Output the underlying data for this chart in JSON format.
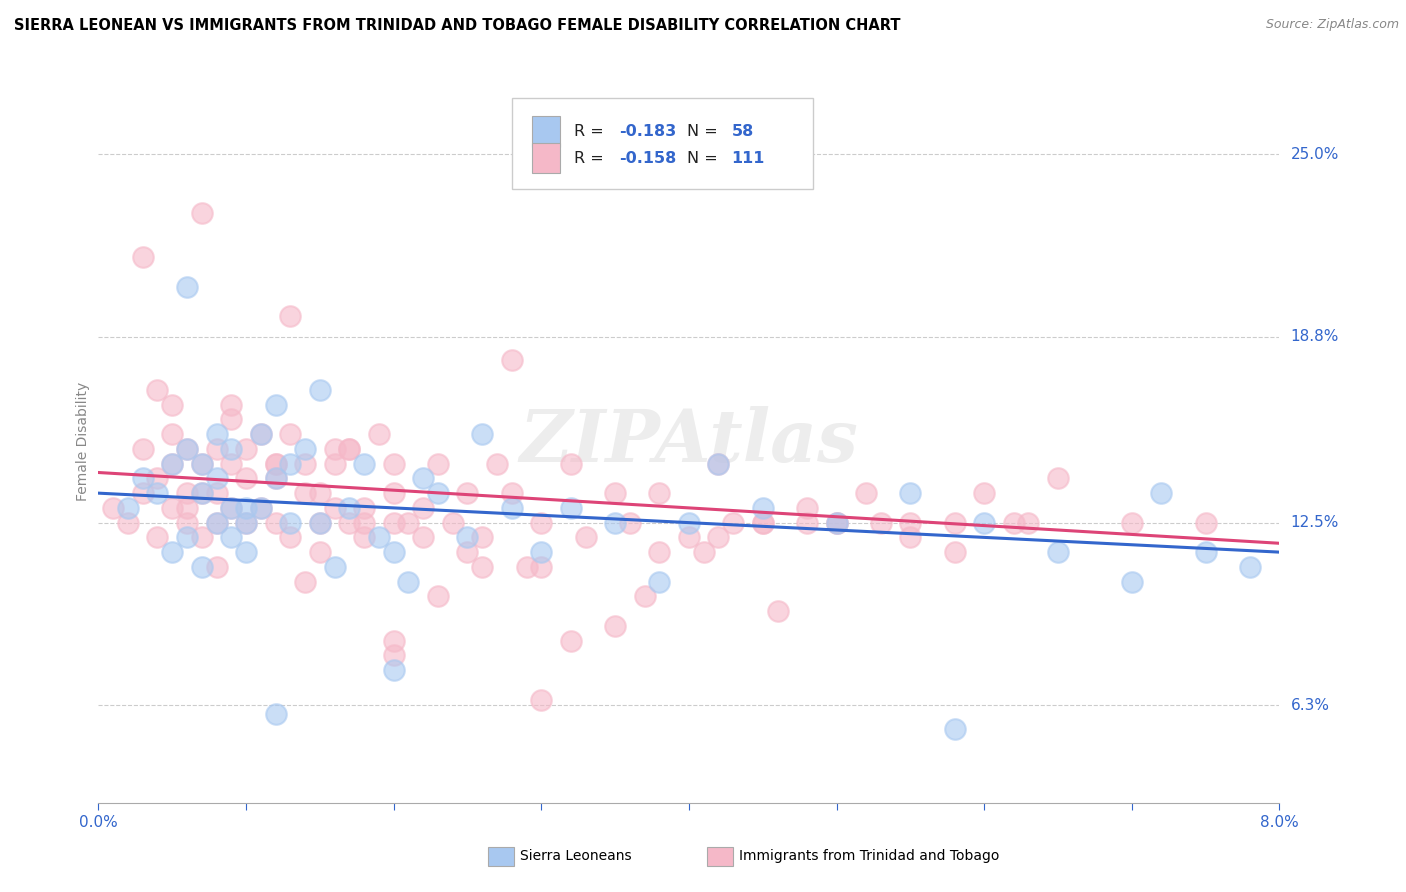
{
  "title": "SIERRA LEONEAN VS IMMIGRANTS FROM TRINIDAD AND TOBAGO FEMALE DISABILITY CORRELATION CHART",
  "source": "Source: ZipAtlas.com",
  "ylabel_ticks": [
    6.3,
    12.5,
    18.8,
    25.0
  ],
  "ylabel_label": "Female Disability",
  "legend1_R": -0.183,
  "legend1_N": 58,
  "legend2_R": -0.158,
  "legend2_N": 111,
  "color_blue": "#a8c8f0",
  "color_pink": "#f5b8c8",
  "color_blue_line": "#3366cc",
  "color_pink_line": "#dd4477",
  "xmin": 0.0,
  "xmax": 8.0,
  "ymin": 3.0,
  "ymax": 27.5,
  "blue_scatter_x": [
    0.2,
    0.3,
    0.4,
    0.5,
    0.5,
    0.6,
    0.6,
    0.7,
    0.7,
    0.7,
    0.8,
    0.8,
    0.8,
    0.9,
    0.9,
    0.9,
    1.0,
    1.0,
    1.0,
    1.1,
    1.1,
    1.2,
    1.2,
    1.3,
    1.3,
    1.4,
    1.5,
    1.5,
    1.6,
    1.7,
    1.8,
    1.9,
    2.0,
    2.1,
    2.2,
    2.3,
    2.5,
    2.6,
    2.8,
    3.0,
    3.2,
    3.5,
    3.8,
    4.0,
    4.2,
    4.5,
    5.0,
    5.5,
    6.0,
    6.5,
    7.0,
    7.2,
    7.5,
    2.0,
    1.2,
    0.6,
    5.8,
    7.8
  ],
  "blue_scatter_y": [
    13.0,
    14.0,
    13.5,
    11.5,
    14.5,
    12.0,
    15.0,
    14.5,
    11.0,
    13.5,
    12.5,
    14.0,
    15.5,
    13.0,
    12.0,
    15.0,
    11.5,
    13.0,
    12.5,
    15.5,
    13.0,
    14.0,
    16.5,
    12.5,
    14.5,
    15.0,
    12.5,
    17.0,
    11.0,
    13.0,
    14.5,
    12.0,
    11.5,
    10.5,
    14.0,
    13.5,
    12.0,
    15.5,
    13.0,
    11.5,
    13.0,
    12.5,
    10.5,
    12.5,
    14.5,
    13.0,
    12.5,
    13.5,
    12.5,
    11.5,
    10.5,
    13.5,
    11.5,
    7.5,
    6.0,
    20.5,
    5.5,
    11.0
  ],
  "pink_scatter_x": [
    0.1,
    0.2,
    0.3,
    0.3,
    0.4,
    0.4,
    0.5,
    0.5,
    0.5,
    0.6,
    0.6,
    0.6,
    0.7,
    0.7,
    0.7,
    0.8,
    0.8,
    0.8,
    0.9,
    0.9,
    0.9,
    1.0,
    1.0,
    1.0,
    1.1,
    1.1,
    1.2,
    1.2,
    1.2,
    1.3,
    1.3,
    1.4,
    1.4,
    1.5,
    1.5,
    1.6,
    1.6,
    1.7,
    1.7,
    1.8,
    1.8,
    1.9,
    2.0,
    2.0,
    2.1,
    2.2,
    2.3,
    2.4,
    2.5,
    2.6,
    2.7,
    2.8,
    3.0,
    3.2,
    3.3,
    3.5,
    3.6,
    3.8,
    4.0,
    4.2,
    4.5,
    4.8,
    5.0,
    5.2,
    5.5,
    5.8,
    6.0,
    6.3,
    6.5,
    7.0,
    7.5,
    0.4,
    1.5,
    2.5,
    3.0,
    5.5,
    0.7,
    1.3,
    4.5,
    5.8,
    1.8,
    2.2,
    0.8,
    1.6,
    2.0,
    3.0,
    4.8,
    2.8,
    3.5,
    2.0,
    5.0,
    4.2,
    1.2,
    2.3,
    3.8,
    0.9,
    1.7,
    2.6,
    4.1,
    3.2,
    1.4,
    0.6,
    2.9,
    3.7,
    4.6,
    5.3,
    0.3,
    0.5,
    2.0,
    4.3,
    6.2
  ],
  "pink_scatter_y": [
    13.0,
    12.5,
    13.5,
    15.0,
    12.0,
    14.0,
    13.0,
    14.5,
    15.5,
    12.5,
    13.5,
    15.0,
    13.5,
    12.0,
    14.5,
    13.5,
    15.0,
    12.5,
    13.0,
    14.5,
    16.0,
    12.5,
    14.0,
    15.0,
    13.0,
    15.5,
    12.5,
    14.5,
    14.0,
    12.0,
    15.5,
    13.5,
    14.5,
    12.5,
    13.5,
    14.5,
    13.0,
    12.5,
    15.0,
    13.0,
    12.0,
    15.5,
    13.5,
    14.5,
    12.5,
    13.0,
    14.5,
    12.5,
    13.5,
    12.0,
    14.5,
    13.5,
    12.5,
    14.5,
    12.0,
    13.5,
    12.5,
    13.5,
    12.0,
    14.5,
    12.5,
    13.0,
    12.5,
    13.5,
    12.5,
    12.5,
    13.5,
    12.5,
    14.0,
    12.5,
    12.5,
    17.0,
    11.5,
    11.5,
    11.0,
    12.0,
    23.0,
    19.5,
    12.5,
    11.5,
    12.5,
    12.0,
    11.0,
    15.0,
    12.5,
    6.5,
    12.5,
    18.0,
    9.0,
    8.5,
    12.5,
    12.0,
    14.5,
    10.0,
    11.5,
    16.5,
    15.0,
    11.0,
    11.5,
    8.5,
    10.5,
    13.0,
    11.0,
    10.0,
    9.5,
    12.5,
    21.5,
    16.5,
    8.0,
    12.5,
    12.5
  ]
}
